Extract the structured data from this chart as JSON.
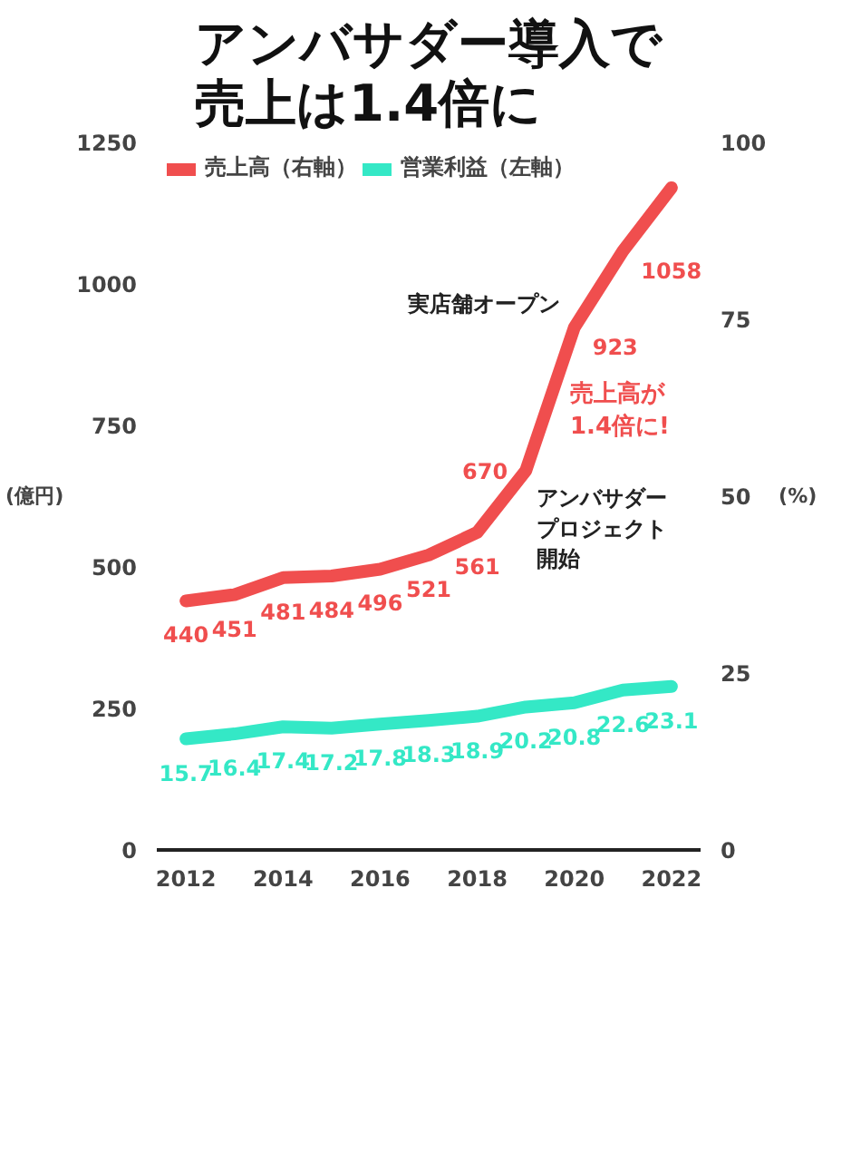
{
  "chart_data": {
    "type": "line",
    "title": "アンバサダー導入で売上は1.4倍に",
    "ylabel": "(億円)",
    "y2label": "(%)",
    "x": [
      2012,
      2013,
      2014,
      2015,
      2016,
      2017,
      2018,
      2019,
      2020,
      2021,
      2022
    ],
    "series": [
      {
        "name": "売上高（右軸）",
        "color": "#f04e4e",
        "values": [
          440,
          451,
          481,
          484,
          496,
          521,
          561,
          670,
          923,
          1058,
          1170
        ],
        "value_labels": [
          "440",
          "451",
          "481",
          "484",
          "496",
          "521",
          "561",
          "670",
          "923",
          "1058",
          null
        ]
      },
      {
        "name": "営業利益（左軸）",
        "color": "#34e8c6",
        "axis": "y2",
        "values": [
          15.7,
          16.4,
          17.4,
          17.2,
          17.8,
          18.3,
          18.9,
          20.2,
          20.8,
          22.6,
          23.1
        ],
        "value_labels": [
          "15.7",
          "16.4",
          "17.4",
          "17.2",
          "17.8",
          "18.3",
          "18.9",
          "20.2",
          "20.8",
          "22.6",
          "23.1"
        ]
      }
    ],
    "xlim": [
      2011.4,
      2022.6
    ],
    "xticks": [
      2012,
      2014,
      2016,
      2018,
      2020,
      2022
    ],
    "ylim": [
      0,
      1250
    ],
    "yticks": [
      0,
      250,
      500,
      750,
      1000,
      1250
    ],
    "y2lim": [
      0,
      100
    ],
    "y2ticks": [
      0,
      25,
      50,
      75,
      100
    ],
    "annotations": [
      {
        "text": "実店舗オープン",
        "x": 2020,
        "y": 923
      },
      {
        "text": "アンバサダープロジェクト開始",
        "x": 2019,
        "y": 670
      },
      "売上高が1.4倍に!"
    ],
    "legend": "top left",
    "grid": false,
    "line_style": "solid",
    "marker": "none"
  }
}
